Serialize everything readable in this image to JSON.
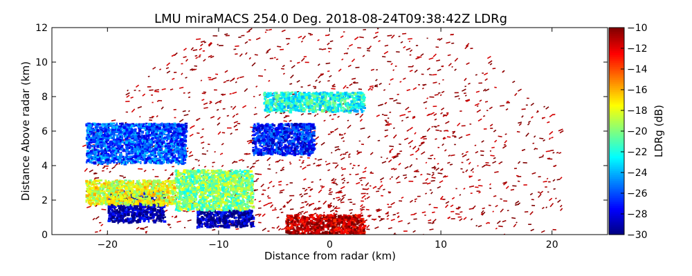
{
  "chart_data": {
    "type": "heatmap",
    "title": "LMU miraMACS 254.0 Deg. 2018-08-24T09:38:42Z  LDRg",
    "xlabel": "Distance from radar (km)",
    "ylabel": "Distance Above radar  (km)",
    "xlim": [
      -25,
      25
    ],
    "ylim": [
      0,
      12
    ],
    "x_ticks": [
      -20,
      -10,
      0,
      10,
      20
    ],
    "y_ticks": [
      0,
      2,
      4,
      6,
      8,
      10,
      12
    ],
    "grid": false,
    "colorbar": {
      "label": "LDRg (dB)",
      "range": [
        -30,
        -10
      ],
      "ticks": [
        -30,
        -28,
        -26,
        -24,
        -22,
        -20,
        -18,
        -16,
        -14,
        -12,
        -10
      ],
      "colormap": "jet",
      "colors": [
        "#00007f",
        "#0000ff",
        "#007fff",
        "#00ffff",
        "#7fff7f",
        "#ffff00",
        "#ff7f00",
        "#ff0000",
        "#7f0000"
      ]
    },
    "regions": [
      {
        "x": [
          -22,
          -13
        ],
        "y": [
          4.2,
          6.5
        ],
        "ldr_db": -26
      },
      {
        "x": [
          -20,
          -15
        ],
        "y": [
          0.8,
          2.6
        ],
        "ldr_db": -29
      },
      {
        "x": [
          -12,
          -7
        ],
        "y": [
          0.5,
          1.5
        ],
        "ldr_db": -29
      },
      {
        "x": [
          -7,
          -1.5
        ],
        "y": [
          4.7,
          6.5
        ],
        "ldr_db": -27
      },
      {
        "x": [
          -6,
          3
        ],
        "y": [
          7.2,
          8.3
        ],
        "ldr_db": -22
      },
      {
        "x": [
          -22,
          -14
        ],
        "y": [
          1.8,
          3.2
        ],
        "ldr_db": -18
      },
      {
        "x": [
          -14,
          -7
        ],
        "y": [
          1.5,
          3.8
        ],
        "ldr_db": -20
      },
      {
        "x": [
          -4,
          3
        ],
        "y": [
          0,
          1.2
        ],
        "ldr_db": -11
      }
    ]
  }
}
